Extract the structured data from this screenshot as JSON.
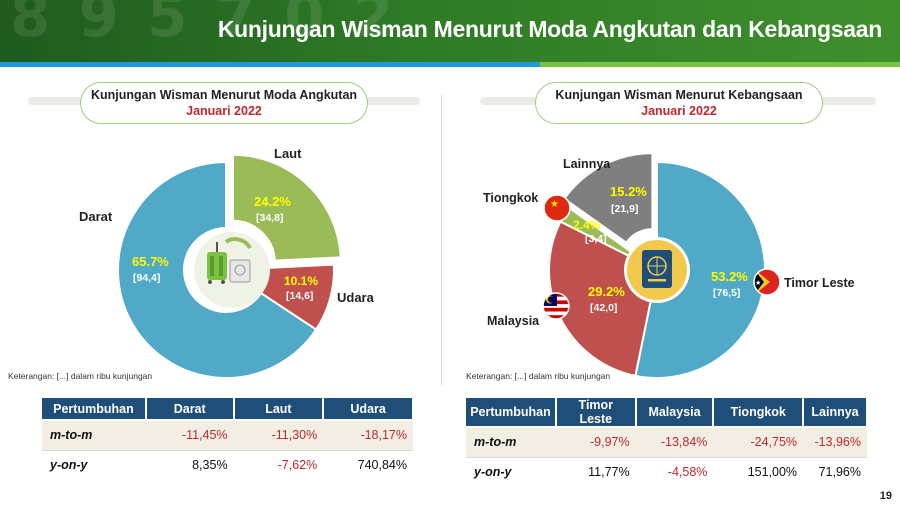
{
  "header": {
    "title": "Kunjungan Wisman Menurut Moda Angkutan dan Kebangsaan"
  },
  "page_number": "19",
  "left": {
    "title_line1": "Kunjungan Wisman Menurut Moda Angkutan",
    "title_line2": "Januari 2022",
    "note": "Keterangan: [...] dalam ribu kunjungan",
    "table": {
      "headers": [
        "Pertumbuhan",
        "Darat",
        "Laut",
        "Udara"
      ],
      "rows": [
        {
          "label": "m-to-m",
          "values": [
            "-11,45%",
            "-11,30%",
            "-18,17%"
          ]
        },
        {
          "label": "y-on-y",
          "values": [
            "8,35%",
            "-7,62%",
            "740,84%"
          ]
        }
      ]
    }
  },
  "right": {
    "title_line1": "Kunjungan Wisman Menurut Kebangsaan",
    "title_line2": "Januari 2022",
    "note": "Keterangan: [...] dalam ribu kunjungan",
    "table": {
      "headers": [
        "Pertumbuhan",
        "Timor Leste",
        "Malaysia",
        "Tiongkok",
        "Lainnya"
      ],
      "rows": [
        {
          "label": "m-to-m",
          "values": [
            "-9,97%",
            "-13,84%",
            "-24,75%",
            "-13,96%"
          ]
        },
        {
          "label": "y-on-y",
          "values": [
            "11,77%",
            "-4,58%",
            "151,00%",
            "71,96%"
          ]
        }
      ]
    }
  },
  "chart_data": [
    {
      "type": "pie",
      "donut": true,
      "slices": [
        {
          "name": "Darat",
          "percent": 65.7,
          "value": 94.4,
          "value_label": "[94,4]",
          "percent_label": "65.7%",
          "color": "#4fa9c7"
        },
        {
          "name": "Laut",
          "percent": 24.2,
          "value": 34.8,
          "value_label": "[34,8]",
          "percent_label": "24.2%",
          "color": "#9bbb59"
        },
        {
          "name": "Udara",
          "percent": 10.1,
          "value": 14.6,
          "value_label": "[14,6]",
          "percent_label": "10.1%",
          "color": "#c0504d"
        }
      ],
      "center_icon": "luggage-icon"
    },
    {
      "type": "pie",
      "donut": true,
      "slices": [
        {
          "name": "Timor Leste",
          "percent": 53.2,
          "value": 76.5,
          "value_label": "[76,5]",
          "percent_label": "53.2%",
          "color": "#4fa9c7",
          "flag": "timor-leste-flag-icon"
        },
        {
          "name": "Malaysia",
          "percent": 29.2,
          "value": 42.0,
          "value_label": "[42,0]",
          "percent_label": "29.2%",
          "color": "#c0504d",
          "flag": "malaysia-flag-icon"
        },
        {
          "name": "Tiongkok",
          "percent": 2.4,
          "value": 3.4,
          "value_label": "[3,4]",
          "percent_label": "2.4%",
          "color": "#9bbb59",
          "flag": "china-flag-icon"
        },
        {
          "name": "Lainnya",
          "percent": 15.2,
          "value": 21.9,
          "value_label": "[21,9]",
          "percent_label": "15.2%",
          "color": "#7f7f7f"
        }
      ],
      "center_icon": "passport-icon"
    }
  ],
  "colors": {
    "header_green": "#2e7a26",
    "table_header": "#1f4e79",
    "negative": "#c0282e",
    "highlight": "#ffff00"
  }
}
